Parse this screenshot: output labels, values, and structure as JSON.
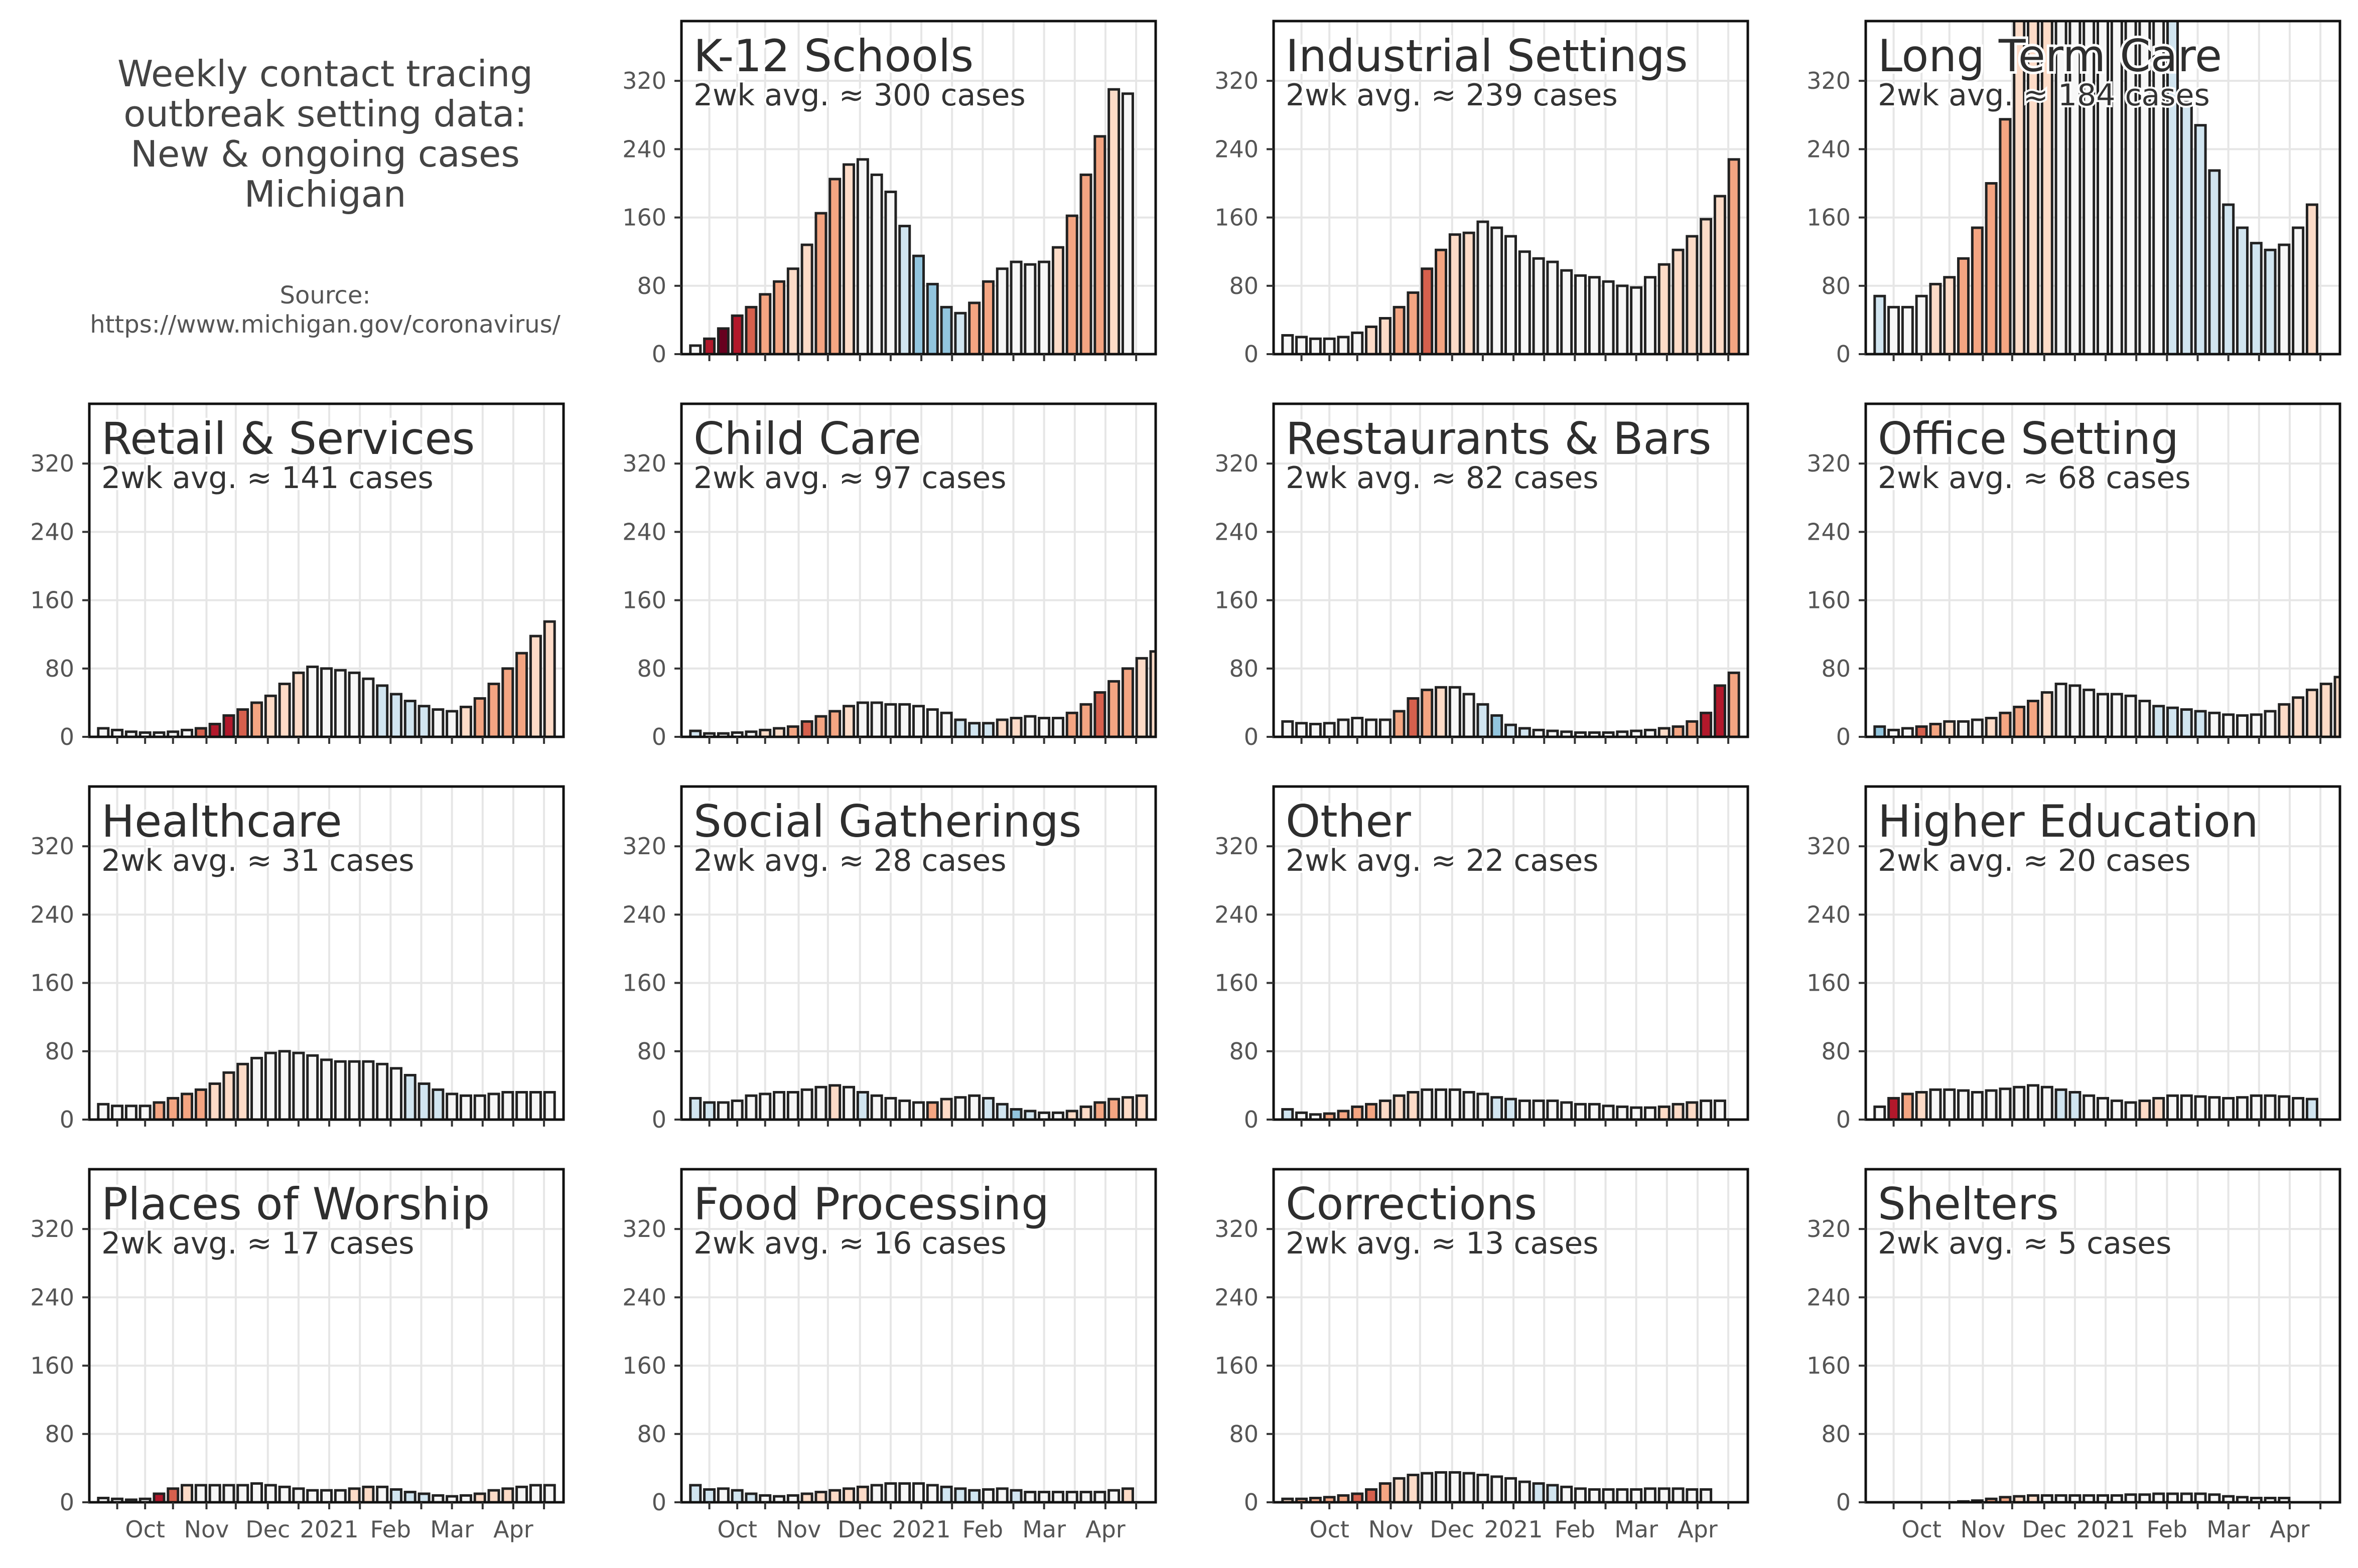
{
  "figure": {
    "title_lines": [
      "Weekly contact tracing",
      "outbreak setting data:",
      "New & ongoing cases",
      "Michigan"
    ],
    "source_lines": [
      "Source:",
      "https://www.michigan.gov/coronavirus/"
    ]
  },
  "colors": {
    "bar_edge": "#222222",
    "grid": "#e6e6e6",
    "frame": "#111111",
    "scale": [
      "#67001f",
      "#b2182b",
      "#d6604d",
      "#f4a582",
      "#fddbc7",
      "#f7f7f7",
      "#d1e5f0",
      "#92c5de"
    ]
  },
  "axes": {
    "ylim": [
      0,
      390
    ],
    "yticks": [
      0,
      80,
      160,
      240,
      320
    ],
    "xlim": [
      -1,
      33
    ],
    "xticks": [
      {
        "label": "Oct",
        "x": 3
      },
      {
        "label": "Nov",
        "x": 7.4
      },
      {
        "label": "Dec",
        "x": 11.8
      },
      {
        "label": "2021",
        "x": 16.2
      },
      {
        "label": "Feb",
        "x": 20.6
      },
      {
        "label": "Mar",
        "x": 25
      },
      {
        "label": "Apr",
        "x": 29.4
      }
    ]
  },
  "chart_data": [
    {
      "type": "bar",
      "title": "K-12 Schools",
      "subtitle": "2wk avg. ≈ 300 cases",
      "values": [
        10,
        18,
        30,
        45,
        55,
        70,
        85,
        100,
        128,
        165,
        205,
        222,
        228,
        210,
        190,
        150,
        115,
        82,
        55,
        48,
        60,
        85,
        100,
        108,
        105,
        108,
        125,
        162,
        210,
        255,
        310,
        305
      ],
      "colors": [
        5,
        1,
        0,
        1,
        2,
        3,
        3,
        4,
        4,
        3,
        3,
        4,
        5,
        5,
        5,
        6,
        7,
        7,
        7,
        6,
        3,
        3,
        5,
        5,
        5,
        5,
        4,
        3,
        3,
        3,
        4,
        5
      ]
    },
    {
      "type": "bar",
      "title": "Industrial Settings",
      "subtitle": "2wk avg. ≈ 239 cases",
      "values": [
        22,
        20,
        18,
        18,
        20,
        25,
        32,
        42,
        55,
        72,
        100,
        122,
        140,
        142,
        155,
        148,
        138,
        120,
        112,
        108,
        98,
        92,
        90,
        85,
        80,
        78,
        90,
        105,
        122,
        138,
        158,
        185,
        228
      ],
      "colors": [
        5,
        5,
        5,
        5,
        5,
        5,
        4,
        4,
        3,
        3,
        2,
        3,
        4,
        4,
        5,
        5,
        5,
        5,
        5,
        5,
        5,
        5,
        5,
        5,
        5,
        5,
        5,
        4,
        4,
        4,
        4,
        4,
        3
      ]
    },
    {
      "type": "bar",
      "title": "Long Term Care",
      "subtitle": "2wk avg. ≈ 184 cases",
      "values": [
        68,
        55,
        55,
        68,
        82,
        90,
        112,
        148,
        200,
        275,
        395,
        395,
        395,
        395,
        395,
        395,
        395,
        395,
        395,
        395,
        395,
        395,
        295,
        268,
        215,
        175,
        148,
        130,
        122,
        128,
        148,
        175
      ],
      "colors": [
        6,
        5,
        5,
        5,
        4,
        4,
        3,
        3,
        3,
        3,
        4,
        4,
        4,
        5,
        5,
        5,
        5,
        5,
        5,
        5,
        5,
        6,
        6,
        6,
        6,
        6,
        6,
        6,
        6,
        5,
        5,
        4
      ]
    },
    {
      "type": "bar",
      "title": "Retail & Services",
      "subtitle": "2wk avg. ≈ 141 cases",
      "values": [
        10,
        8,
        6,
        5,
        5,
        6,
        8,
        10,
        15,
        25,
        32,
        40,
        48,
        62,
        75,
        82,
        80,
        78,
        75,
        68,
        60,
        50,
        42,
        36,
        32,
        30,
        35,
        45,
        62,
        80,
        98,
        118,
        135
      ],
      "colors": [
        5,
        5,
        5,
        5,
        5,
        5,
        5,
        2,
        1,
        1,
        2,
        3,
        4,
        4,
        4,
        5,
        5,
        5,
        5,
        5,
        6,
        6,
        6,
        6,
        5,
        5,
        4,
        3,
        3,
        3,
        3,
        4,
        4
      ]
    },
    {
      "type": "bar",
      "title": "Child Care",
      "subtitle": "2wk avg. ≈ 97 cases",
      "values": [
        7,
        4,
        4,
        5,
        6,
        8,
        10,
        12,
        18,
        24,
        30,
        36,
        40,
        40,
        38,
        38,
        36,
        32,
        28,
        20,
        16,
        16,
        20,
        22,
        24,
        22,
        22,
        28,
        38,
        52,
        65,
        80,
        92,
        100,
        100
      ],
      "colors": [
        6,
        5,
        5,
        5,
        5,
        4,
        4,
        3,
        2,
        3,
        3,
        4,
        5,
        5,
        5,
        5,
        5,
        5,
        5,
        6,
        6,
        6,
        4,
        4,
        5,
        5,
        5,
        3,
        3,
        2,
        3,
        3,
        4,
        4,
        5
      ]
    },
    {
      "type": "bar",
      "title": "Restaurants & Bars",
      "subtitle": "2wk avg. ≈ 82 cases",
      "values": [
        18,
        16,
        15,
        16,
        20,
        22,
        20,
        20,
        30,
        45,
        55,
        58,
        58,
        50,
        38,
        25,
        14,
        10,
        8,
        7,
        6,
        5,
        5,
        5,
        6,
        7,
        8,
        10,
        12,
        18,
        28,
        60,
        75
      ],
      "colors": [
        5,
        5,
        5,
        5,
        5,
        5,
        5,
        5,
        3,
        2,
        3,
        4,
        5,
        5,
        6,
        7,
        6,
        6,
        5,
        5,
        5,
        5,
        5,
        5,
        5,
        5,
        5,
        4,
        3,
        3,
        1,
        1,
        3
      ]
    },
    {
      "type": "bar",
      "title": "Office Setting",
      "subtitle": "2wk avg. ≈ 68 cases",
      "values": [
        12,
        8,
        10,
        12,
        15,
        18,
        18,
        20,
        22,
        28,
        35,
        42,
        52,
        62,
        60,
        55,
        50,
        50,
        48,
        42,
        36,
        34,
        32,
        30,
        28,
        26,
        25,
        26,
        30,
        38,
        46,
        55,
        62,
        70
      ],
      "colors": [
        7,
        5,
        5,
        2,
        3,
        4,
        5,
        5,
        4,
        3,
        3,
        3,
        4,
        5,
        5,
        5,
        5,
        5,
        5,
        5,
        6,
        6,
        6,
        6,
        5,
        5,
        5,
        5,
        5,
        4,
        4,
        4,
        4,
        4
      ]
    },
    {
      "type": "bar",
      "title": "Healthcare",
      "subtitle": "2wk avg. ≈ 31 cases",
      "values": [
        18,
        16,
        16,
        16,
        20,
        25,
        30,
        35,
        42,
        55,
        65,
        72,
        78,
        80,
        78,
        75,
        70,
        68,
        68,
        68,
        65,
        60,
        52,
        42,
        35,
        30,
        28,
        28,
        30,
        32,
        32,
        32,
        32
      ],
      "colors": [
        5,
        5,
        5,
        5,
        3,
        3,
        3,
        3,
        4,
        4,
        4,
        5,
        5,
        5,
        5,
        5,
        5,
        5,
        5,
        5,
        5,
        5,
        6,
        6,
        6,
        5,
        5,
        5,
        5,
        5,
        5,
        5,
        5
      ]
    },
    {
      "type": "bar",
      "title": "Social Gatherings",
      "subtitle": "2wk avg. ≈ 28 cases",
      "values": [
        25,
        20,
        20,
        22,
        28,
        30,
        32,
        32,
        35,
        38,
        40,
        38,
        32,
        28,
        25,
        22,
        20,
        20,
        24,
        26,
        28,
        25,
        18,
        12,
        10,
        8,
        8,
        10,
        15,
        20,
        24,
        26,
        28
      ],
      "colors": [
        6,
        6,
        5,
        5,
        5,
        5,
        5,
        5,
        5,
        5,
        4,
        5,
        6,
        5,
        5,
        5,
        5,
        3,
        4,
        5,
        5,
        6,
        6,
        7,
        6,
        5,
        5,
        4,
        4,
        3,
        3,
        4,
        4
      ]
    },
    {
      "type": "bar",
      "title": "Other",
      "subtitle": "2wk avg. ≈ 22 cases",
      "values": [
        12,
        8,
        6,
        7,
        10,
        15,
        18,
        22,
        28,
        32,
        35,
        35,
        35,
        32,
        30,
        26,
        24,
        22,
        22,
        22,
        20,
        18,
        18,
        16,
        15,
        14,
        14,
        15,
        18,
        20,
        22,
        22
      ],
      "colors": [
        6,
        5,
        5,
        3,
        3,
        3,
        3,
        4,
        4,
        4,
        5,
        5,
        5,
        5,
        5,
        6,
        6,
        5,
        5,
        5,
        5,
        5,
        5,
        5,
        5,
        5,
        5,
        4,
        4,
        4,
        5,
        5
      ]
    },
    {
      "type": "bar",
      "title": "Higher Education",
      "subtitle": "2wk avg. ≈ 20 cases",
      "values": [
        15,
        25,
        30,
        32,
        35,
        35,
        34,
        32,
        34,
        36,
        38,
        40,
        38,
        35,
        32,
        28,
        25,
        22,
        20,
        22,
        25,
        28,
        28,
        27,
        26,
        25,
        26,
        28,
        28,
        27,
        25,
        24
      ],
      "colors": [
        5,
        1,
        3,
        4,
        5,
        5,
        5,
        5,
        5,
        5,
        5,
        5,
        5,
        6,
        6,
        5,
        5,
        5,
        5,
        4,
        4,
        5,
        5,
        5,
        5,
        5,
        5,
        5,
        5,
        5,
        5,
        6
      ]
    },
    {
      "type": "bar",
      "title": "Places of Worship",
      "subtitle": "2wk avg. ≈ 17 cases",
      "values": [
        5,
        4,
        3,
        4,
        10,
        16,
        20,
        20,
        20,
        20,
        20,
        22,
        20,
        18,
        16,
        14,
        14,
        14,
        16,
        18,
        18,
        15,
        12,
        10,
        8,
        7,
        8,
        10,
        14,
        16,
        18,
        20,
        20
      ],
      "colors": [
        5,
        5,
        5,
        5,
        1,
        2,
        4,
        5,
        5,
        5,
        5,
        5,
        5,
        5,
        5,
        5,
        5,
        5,
        4,
        4,
        5,
        6,
        6,
        6,
        5,
        5,
        5,
        4,
        4,
        4,
        5,
        5,
        5
      ]
    },
    {
      "type": "bar",
      "title": "Food Processing",
      "subtitle": "2wk avg. ≈ 16 cases",
      "values": [
        20,
        15,
        16,
        14,
        10,
        8,
        7,
        8,
        10,
        12,
        14,
        16,
        18,
        20,
        22,
        22,
        22,
        20,
        18,
        16,
        14,
        15,
        16,
        14,
        12,
        12,
        12,
        12,
        12,
        12,
        14,
        16
      ],
      "colors": [
        6,
        6,
        5,
        6,
        6,
        5,
        5,
        5,
        4,
        4,
        4,
        4,
        4,
        5,
        5,
        5,
        5,
        5,
        6,
        6,
        6,
        5,
        5,
        6,
        5,
        5,
        5,
        5,
        5,
        5,
        5,
        4
      ]
    },
    {
      "type": "bar",
      "title": "Corrections",
      "subtitle": "2wk avg. ≈ 13 cases",
      "values": [
        4,
        4,
        5,
        6,
        8,
        10,
        15,
        22,
        28,
        32,
        34,
        35,
        35,
        34,
        32,
        30,
        28,
        24,
        22,
        20,
        18,
        16,
        15,
        15,
        15,
        15,
        16,
        16,
        16,
        15,
        15
      ],
      "colors": [
        4,
        3,
        3,
        3,
        3,
        2,
        2,
        3,
        4,
        4,
        5,
        5,
        5,
        5,
        5,
        5,
        5,
        5,
        6,
        6,
        5,
        5,
        5,
        5,
        5,
        5,
        5,
        5,
        5,
        5,
        5
      ]
    },
    {
      "type": "bar",
      "title": "Shelters",
      "subtitle": "2wk avg. ≈ 5 cases",
      "values": [
        0,
        0,
        0,
        0,
        0,
        0,
        1,
        2,
        4,
        6,
        7,
        8,
        8,
        8,
        8,
        8,
        8,
        8,
        9,
        9,
        10,
        10,
        10,
        10,
        9,
        7,
        6,
        5,
        5,
        5
      ],
      "colors": [
        5,
        5,
        5,
        5,
        5,
        5,
        5,
        5,
        3,
        3,
        4,
        4,
        5,
        5,
        5,
        5,
        5,
        5,
        5,
        5,
        5,
        5,
        5,
        5,
        5,
        5,
        5,
        5,
        5,
        5
      ]
    }
  ]
}
